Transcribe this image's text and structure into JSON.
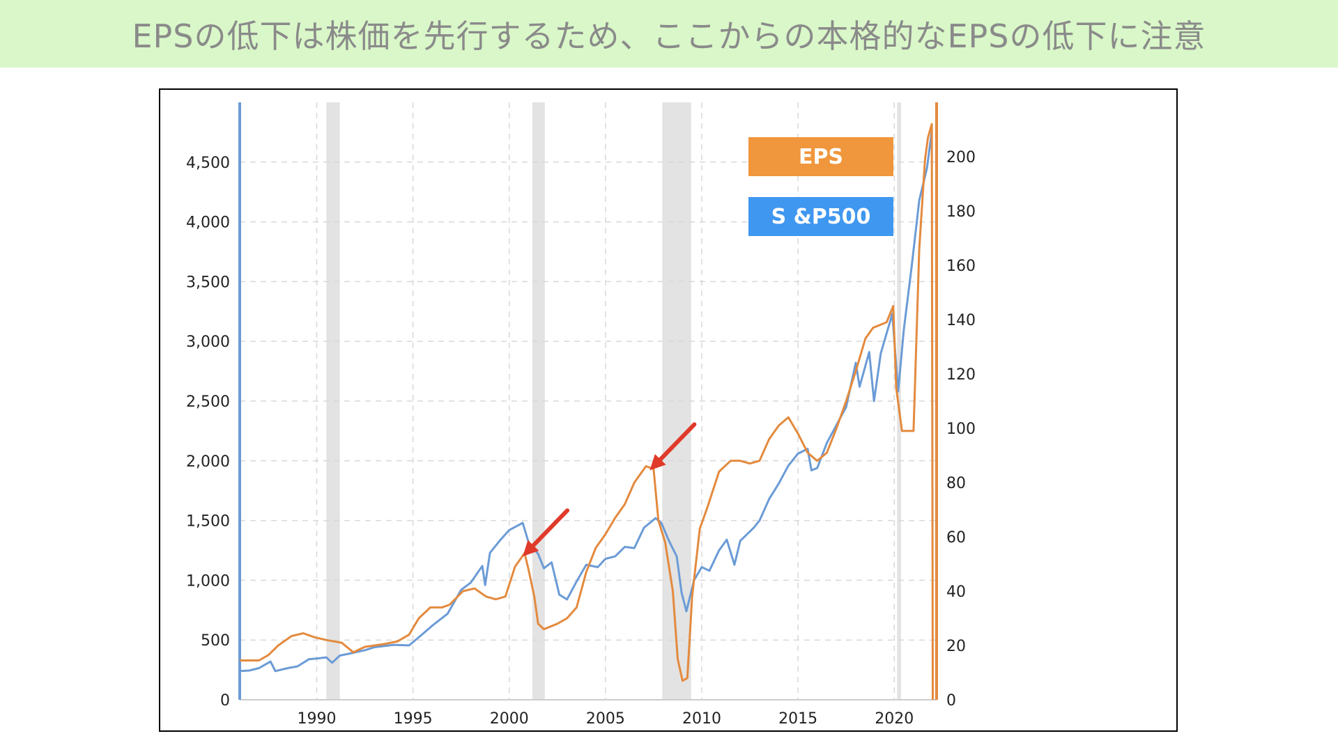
{
  "banner": {
    "title": "EPSの低下は株価を先行するため、ここからの本格的なEPSの低下に注意"
  },
  "colors": {
    "banner_bg": "#d9f7c8",
    "sp500": "#6b9bd6",
    "eps": "#e38a3e",
    "recession": "#e3e3e3",
    "arrow": "#e03a2a",
    "legend_eps": "#f0963c",
    "legend_sp": "#3f97f0"
  },
  "chart_data": {
    "type": "line",
    "legend": [
      {
        "label": "EPS",
        "series": "eps"
      },
      {
        "label": "S &P500",
        "series": "sp500"
      }
    ],
    "legend_position": "top-right",
    "grid": true,
    "xlim": [
      1986.0,
      2022.2
    ],
    "x_ticks": [
      "1990",
      "1995",
      "2000",
      "2005",
      "2010",
      "2015",
      "2020"
    ],
    "y_left": {
      "lim": [
        0,
        5000
      ],
      "ticks": [
        "0",
        "500",
        "1,000",
        "1,500",
        "2,000",
        "2,500",
        "3,000",
        "3,500",
        "4,000",
        "4,500"
      ]
    },
    "y_right": {
      "lim": [
        0,
        220
      ],
      "ticks": [
        "0",
        "20",
        "40",
        "60",
        "80",
        "100",
        "120",
        "140",
        "160",
        "180",
        "200"
      ]
    },
    "recessions": [
      [
        1990.5,
        1991.2
      ],
      [
        2001.2,
        2001.85
      ],
      [
        2007.95,
        2009.45
      ],
      [
        2020.15,
        2020.35
      ]
    ],
    "series": [
      {
        "name": "S &P500",
        "key": "sp500",
        "axis": "left",
        "points": [
          [
            1986.0,
            240
          ],
          [
            1986.5,
            245
          ],
          [
            1987.0,
            265
          ],
          [
            1987.6,
            320
          ],
          [
            1987.85,
            240
          ],
          [
            1988.5,
            265
          ],
          [
            1989.0,
            280
          ],
          [
            1989.6,
            340
          ],
          [
            1990.0,
            345
          ],
          [
            1990.5,
            355
          ],
          [
            1990.8,
            310
          ],
          [
            1991.2,
            370
          ],
          [
            1991.8,
            390
          ],
          [
            1992.5,
            415
          ],
          [
            1993.0,
            440
          ],
          [
            1994.0,
            460
          ],
          [
            1994.8,
            455
          ],
          [
            1995.5,
            550
          ],
          [
            1996.0,
            620
          ],
          [
            1996.8,
            720
          ],
          [
            1997.5,
            920
          ],
          [
            1998.0,
            980
          ],
          [
            1998.6,
            1120
          ],
          [
            1998.75,
            960
          ],
          [
            1999.0,
            1230
          ],
          [
            1999.5,
            1330
          ],
          [
            2000.0,
            1420
          ],
          [
            2000.7,
            1480
          ],
          [
            2001.0,
            1320
          ],
          [
            2001.5,
            1220
          ],
          [
            2001.8,
            1100
          ],
          [
            2002.2,
            1150
          ],
          [
            2002.6,
            880
          ],
          [
            2003.0,
            840
          ],
          [
            2003.5,
            990
          ],
          [
            2004.0,
            1130
          ],
          [
            2004.6,
            1110
          ],
          [
            2005.0,
            1180
          ],
          [
            2005.5,
            1200
          ],
          [
            2006.0,
            1280
          ],
          [
            2006.5,
            1270
          ],
          [
            2007.0,
            1440
          ],
          [
            2007.6,
            1520
          ],
          [
            2007.9,
            1480
          ],
          [
            2008.3,
            1330
          ],
          [
            2008.7,
            1200
          ],
          [
            2008.95,
            900
          ],
          [
            2009.2,
            740
          ],
          [
            2009.6,
            1000
          ],
          [
            2010.0,
            1110
          ],
          [
            2010.4,
            1080
          ],
          [
            2010.9,
            1250
          ],
          [
            2011.3,
            1340
          ],
          [
            2011.7,
            1130
          ],
          [
            2012.0,
            1330
          ],
          [
            2012.7,
            1440
          ],
          [
            2013.0,
            1500
          ],
          [
            2013.5,
            1680
          ],
          [
            2014.0,
            1810
          ],
          [
            2014.5,
            1960
          ],
          [
            2015.0,
            2060
          ],
          [
            2015.5,
            2100
          ],
          [
            2015.7,
            1920
          ],
          [
            2016.0,
            1940
          ],
          [
            2016.5,
            2150
          ],
          [
            2017.0,
            2300
          ],
          [
            2017.5,
            2450
          ],
          [
            2018.0,
            2820
          ],
          [
            2018.2,
            2620
          ],
          [
            2018.7,
            2910
          ],
          [
            2018.95,
            2500
          ],
          [
            2019.3,
            2900
          ],
          [
            2019.9,
            3230
          ],
          [
            2020.2,
            2580
          ],
          [
            2020.5,
            3100
          ],
          [
            2020.9,
            3620
          ],
          [
            2021.3,
            4180
          ],
          [
            2021.7,
            4450
          ],
          [
            2021.95,
            4760
          ]
        ]
      },
      {
        "name": "EPS",
        "key": "eps",
        "axis": "right",
        "points": [
          [
            1986.0,
            14.5
          ],
          [
            1987.0,
            14.5
          ],
          [
            1987.5,
            16.5
          ],
          [
            1988.0,
            20
          ],
          [
            1988.7,
            23.5
          ],
          [
            1989.3,
            24.5
          ],
          [
            1989.9,
            23
          ],
          [
            1990.5,
            22
          ],
          [
            1991.3,
            21
          ],
          [
            1991.9,
            17.5
          ],
          [
            1992.5,
            19.5
          ],
          [
            1993.5,
            20.5
          ],
          [
            1994.2,
            21.5
          ],
          [
            1994.8,
            24
          ],
          [
            1995.3,
            30
          ],
          [
            1995.9,
            34
          ],
          [
            1996.5,
            34
          ],
          [
            1996.9,
            35
          ],
          [
            1997.6,
            40
          ],
          [
            1998.2,
            41
          ],
          [
            1998.8,
            38
          ],
          [
            1999.3,
            37
          ],
          [
            1999.8,
            38
          ],
          [
            2000.3,
            49
          ],
          [
            2000.8,
            54
          ],
          [
            2001.0,
            48
          ],
          [
            2001.3,
            38
          ],
          [
            2001.5,
            28
          ],
          [
            2001.8,
            26
          ],
          [
            2002.5,
            28
          ],
          [
            2003.0,
            30
          ],
          [
            2003.5,
            34
          ],
          [
            2004.0,
            47
          ],
          [
            2004.5,
            56
          ],
          [
            2005.0,
            61
          ],
          [
            2005.5,
            67
          ],
          [
            2006.0,
            72
          ],
          [
            2006.5,
            80
          ],
          [
            2007.1,
            86
          ],
          [
            2007.5,
            85
          ],
          [
            2007.75,
            66
          ],
          [
            2008.1,
            58
          ],
          [
            2008.5,
            40
          ],
          [
            2008.75,
            15
          ],
          [
            2009.0,
            7
          ],
          [
            2009.25,
            8
          ],
          [
            2009.5,
            38
          ],
          [
            2009.9,
            63
          ],
          [
            2010.3,
            71
          ],
          [
            2010.9,
            84
          ],
          [
            2011.5,
            88
          ],
          [
            2012.0,
            88
          ],
          [
            2012.5,
            87
          ],
          [
            2013.0,
            88
          ],
          [
            2013.5,
            96
          ],
          [
            2014.0,
            101
          ],
          [
            2014.5,
            104
          ],
          [
            2015.0,
            98
          ],
          [
            2015.5,
            91
          ],
          [
            2016.0,
            88
          ],
          [
            2016.5,
            91
          ],
          [
            2017.0,
            100
          ],
          [
            2017.5,
            110
          ],
          [
            2018.0,
            121
          ],
          [
            2018.5,
            133
          ],
          [
            2018.9,
            137
          ],
          [
            2019.6,
            139
          ],
          [
            2019.95,
            145
          ],
          [
            2020.1,
            115
          ],
          [
            2020.4,
            99
          ],
          [
            2021.0,
            99
          ],
          [
            2021.3,
            166
          ],
          [
            2021.6,
            199
          ],
          [
            2021.75,
            207
          ],
          [
            2021.95,
            212
          ],
          [
            2022.0,
            0
          ]
        ]
      }
    ],
    "annotations": [
      {
        "type": "arrow",
        "target": [
          2000.7,
          1200
        ]
      },
      {
        "type": "arrow",
        "target": [
          2007.3,
          1920
        ]
      }
    ]
  }
}
